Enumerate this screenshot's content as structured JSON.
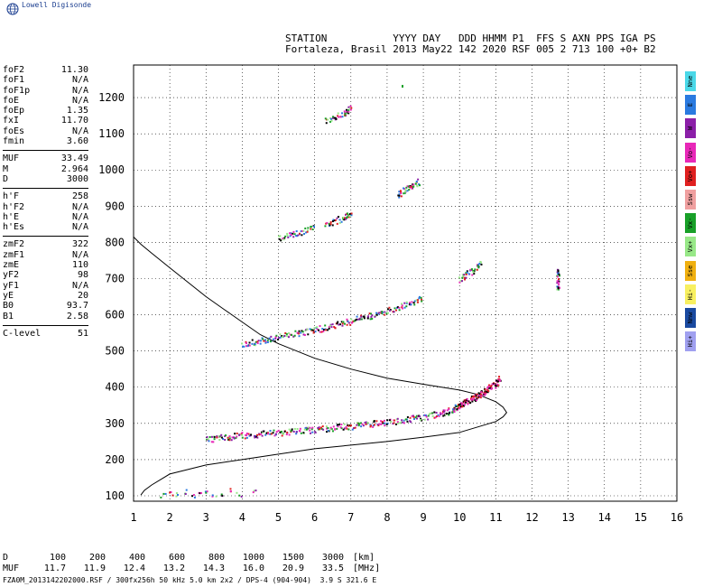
{
  "logo": {
    "text": "Lowell Digisonde",
    "icon": "globe-icon"
  },
  "header": {
    "line1": "STATION           YYYY DAY   DDD HHMM P1  FFS S AXN PPS IGA PS",
    "line2": "Fortaleza, Brasil 2013 May22 142 2020 RSF 005 2 713 100 +0+ B2"
  },
  "params": [
    {
      "label": "foF2",
      "value": "11.30"
    },
    {
      "label": "foF1",
      "value": "N/A"
    },
    {
      "label": "foF1p",
      "value": "N/A"
    },
    {
      "label": "foE",
      "value": "N/A"
    },
    {
      "label": "foEp",
      "value": "1.35"
    },
    {
      "label": "fxI",
      "value": "11.70"
    },
    {
      "label": "foEs",
      "value": "N/A"
    },
    {
      "label": "fmin",
      "value": "3.60"
    },
    {
      "label": "MUF",
      "value": "33.49"
    },
    {
      "label": "M",
      "value": "2.964"
    },
    {
      "label": "D",
      "value": "3000"
    },
    {
      "label": "h'F",
      "value": "258"
    },
    {
      "label": "h'F2",
      "value": "N/A"
    },
    {
      "label": "h'E",
      "value": "N/A"
    },
    {
      "label": "h'Es",
      "value": "N/A"
    },
    {
      "label": "zmF2",
      "value": "322"
    },
    {
      "label": "zmF1",
      "value": "N/A"
    },
    {
      "label": "zmE",
      "value": "110"
    },
    {
      "label": "yF2",
      "value": "98"
    },
    {
      "label": "yF1",
      "value": "N/A"
    },
    {
      "label": "yE",
      "value": "20"
    },
    {
      "label": "B0",
      "value": "93.7"
    },
    {
      "label": "B1",
      "value": "2.58"
    },
    {
      "label": "C-level",
      "value": "51"
    }
  ],
  "legend": [
    {
      "label": "Nne",
      "color": "#4ad8e8"
    },
    {
      "label": "E",
      "color": "#2a7ae0"
    },
    {
      "label": "W",
      "color": "#8b1fa8"
    },
    {
      "label": "Vo-",
      "color": "#e828b8"
    },
    {
      "label": "Vo+",
      "color": "#e02020"
    },
    {
      "label": "Ssw",
      "color": "#f0a0a0"
    },
    {
      "label": "Vx-",
      "color": "#18a028"
    },
    {
      "label": "Vx+",
      "color": "#98e888"
    },
    {
      "label": "Sse",
      "color": "#f0b010"
    },
    {
      "label": "Hi-",
      "color": "#f8f060"
    },
    {
      "label": "Nnw",
      "color": "#1a4aa0"
    },
    {
      "label": "Hi+",
      "color": "#a0a0f0"
    }
  ],
  "dmuf": {
    "d_label": "D",
    "muf_label": "MUF",
    "d_values": [
      "100",
      "200",
      "400",
      "600",
      "800",
      "1000",
      "1500",
      "3000"
    ],
    "muf_values": [
      "11.7",
      "11.9",
      "12.4",
      "13.2",
      "14.3",
      "16.0",
      "20.9",
      "33.5"
    ],
    "d_unit": "[km]",
    "muf_unit": "[MHz]"
  },
  "footer": "FZA0M_2013142202000.RSF / 300fx256h 50 kHz 5.0 km 2x2 / DPS-4 (904-904)  3.9 S 321.6 E",
  "chart_data": {
    "type": "scatter",
    "xlim": [
      1,
      16
    ],
    "ylim": [
      85,
      1290
    ],
    "x_ticks": [
      "1",
      "2",
      "3",
      "4",
      "5",
      "6",
      "7",
      "8",
      "9",
      "10",
      "11",
      "12",
      "13",
      "14",
      "15",
      "16"
    ],
    "y_ticks": [
      "100",
      "200",
      "300",
      "400",
      "500",
      "600",
      "700",
      "800",
      "900",
      "1000",
      "1100",
      "1200"
    ],
    "grid": true,
    "traces": [
      {
        "x": [
          3.0,
          3.5,
          4.0,
          4.5,
          5.0,
          5.5,
          6.0,
          6.5,
          7.0,
          7.5,
          8.0,
          8.5,
          9.0,
          9.5,
          9.8,
          10.0,
          10.2,
          10.4,
          10.6,
          10.8,
          11.0,
          11.1
        ],
        "y": [
          258,
          263,
          268,
          272,
          276,
          280,
          284,
          289,
          294,
          300,
          305,
          312,
          320,
          330,
          338,
          352,
          362,
          372,
          385,
          398,
          412,
          425
        ]
      },
      {
        "x": [
          4.0,
          4.5,
          5.0,
          5.5,
          6.0,
          6.5,
          7.0,
          7.5,
          8.0,
          8.5,
          9.0
        ],
        "y": [
          520,
          530,
          540,
          550,
          560,
          572,
          585,
          598,
          612,
          630,
          650
        ]
      },
      {
        "x": [
          5.0,
          5.5,
          6.0
        ],
        "y": [
          812,
          826,
          842
        ]
      },
      {
        "x": [
          6.3,
          6.8,
          7.0
        ],
        "y": [
          852,
          870,
          885
        ]
      },
      {
        "x": [
          8.3,
          8.6,
          8.9
        ],
        "y": [
          935,
          955,
          970
        ]
      },
      {
        "x": [
          10.0,
          10.3,
          10.6
        ],
        "y": [
          700,
          720,
          748
        ]
      },
      {
        "x": [
          6.3,
          6.8,
          7.0
        ],
        "y": [
          1140,
          1160,
          1175
        ]
      },
      {
        "x": [
          8.4
        ],
        "y": [
          1235
        ]
      },
      {
        "x": [
          12.7,
          12.7
        ],
        "y": [
          678,
          725
        ]
      }
    ],
    "es_points": {
      "x": [
        1.8,
        2.0,
        2.2,
        2.4,
        2.6,
        2.8,
        3.0,
        3.2,
        3.4,
        3.6,
        3.9,
        4.3
      ],
      "y": [
        102,
        108,
        104,
        112,
        100,
        106,
        115,
        102,
        108,
        120,
        105,
        110
      ]
    },
    "profile": {
      "x": [
        1.2,
        1.3,
        1.5,
        2.0,
        3.0,
        4.0,
        5.0,
        6.0,
        7.0,
        8.0,
        9.0,
        10.0,
        10.5,
        11.0,
        11.2,
        11.3,
        11.2,
        11.0,
        10.5,
        10.0,
        9.0,
        8.0,
        7.0,
        6.0,
        5.0,
        4.5,
        4.0,
        3.5,
        3.0,
        2.5,
        2.0,
        1.5,
        1.2,
        1.1,
        1.0
      ],
      "y": [
        102,
        115,
        130,
        160,
        185,
        200,
        215,
        230,
        240,
        250,
        262,
        275,
        290,
        305,
        318,
        330,
        345,
        360,
        380,
        392,
        408,
        425,
        450,
        480,
        520,
        545,
        580,
        615,
        650,
        690,
        730,
        770,
        795,
        805,
        815
      ]
    }
  }
}
